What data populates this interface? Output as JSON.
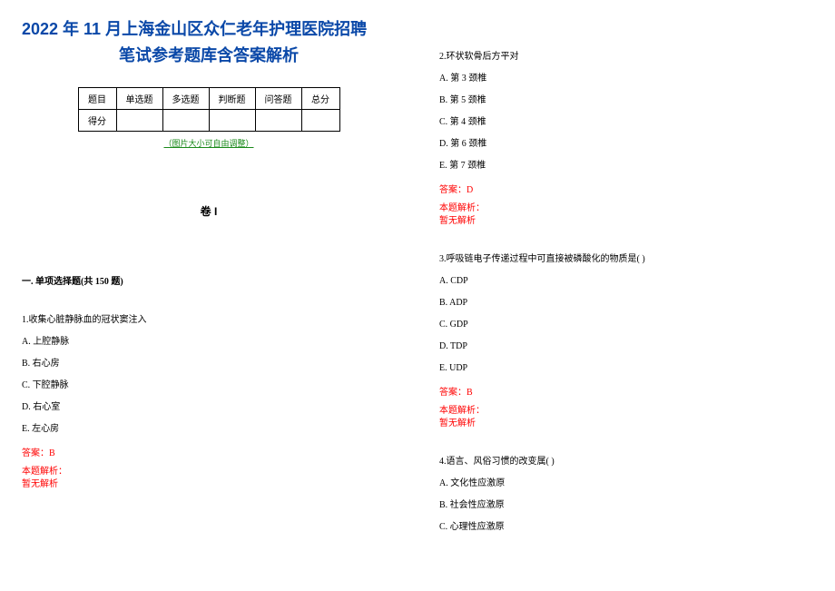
{
  "title_line1": "2022 年 11 月上海金山区众仁老年护理医院招聘",
  "title_line2": "笔试参考题库含答案解析",
  "table_headers": [
    "题目",
    "单选题",
    "多选题",
    "判断题",
    "问答题",
    "总分"
  ],
  "table_row_label": "得分",
  "caption": "（图片大小可自由调整）",
  "juan_label": "卷 I",
  "section_title": "一. 单项选择题(共 150 题)",
  "answer_prefix": "答案：",
  "explain_label": "本题解析：",
  "no_explain": "暂无解析",
  "left_questions": [
    {
      "num": "1.",
      "stem": "收集心脏静脉血的冠状窦注入",
      "opts": [
        "A. 上腔静脉",
        "B. 右心房",
        "C. 下腔静脉",
        "D. 右心室",
        "E. 左心房"
      ],
      "answer": "B"
    }
  ],
  "right_questions": [
    {
      "num": "2.",
      "stem": "环状软骨后方平对",
      "opts": [
        "A. 第 3 颈椎",
        "B. 第 5 颈椎",
        "C. 第 4 颈椎",
        "D. 第 6 颈椎",
        "E. 第 7 颈椎"
      ],
      "answer": "D"
    },
    {
      "num": "3.",
      "stem": "呼吸链电子传递过程中可直接被磷酸化的物质是(   )",
      "opts": [
        "A. CDP",
        "B. ADP",
        "C. GDP",
        "D. TDP",
        "E. UDP"
      ],
      "answer": "B"
    },
    {
      "num": "4.",
      "stem": "语言、风俗习惯的改变属(        )",
      "opts": [
        "A. 文化性应激原",
        "B. 社会性应激原",
        "C. 心理性应激原"
      ],
      "answer": null
    }
  ],
  "colors": {
    "title": "#0a48a8",
    "answer": "#ff0000",
    "caption": "#1a8a1a",
    "text": "#000000",
    "bg": "#ffffff"
  }
}
